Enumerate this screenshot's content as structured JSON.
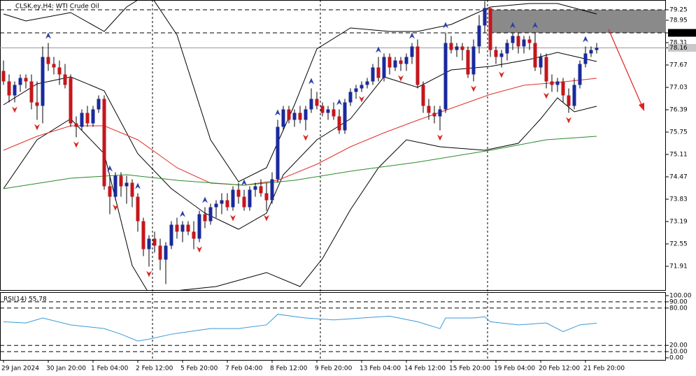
{
  "chart_data": {
    "type": "candlestick",
    "title": "CLSK.ey,H4: WTI Crude Oil",
    "ylim": [
      71.23,
      79.53
    ],
    "yticks": [
      79.25,
      78.95,
      78.59,
      78.31,
      78.16,
      77.67,
      77.03,
      76.39,
      75.75,
      75.11,
      74.47,
      73.83,
      73.19,
      72.55,
      71.91
    ],
    "bid": 78.16,
    "zone": {
      "low": 78.59,
      "high": 79.25,
      "start": 87
    },
    "bull_color": "#1a2a9c",
    "bear_color": "#c4161c",
    "xticks": [
      {
        "value": 0,
        "label": "29 Jan 2024"
      },
      {
        "value": 8,
        "label": "30 Jan 20:00"
      },
      {
        "value": 16,
        "label": "1 Feb 04:00"
      },
      {
        "value": 24,
        "label": "2 Feb 12:00"
      },
      {
        "value": 32,
        "label": "5 Feb 20:00"
      },
      {
        "value": 40,
        "label": "7 Feb 04:00"
      },
      {
        "value": 48,
        "label": "8 Feb 12:00"
      },
      {
        "value": 56,
        "label": "9 Feb 20:00"
      },
      {
        "value": 64,
        "label": "13 Feb 04:00"
      },
      {
        "value": 72,
        "label": "14 Feb 12:00"
      },
      {
        "value": 80,
        "label": "15 Feb 20:00"
      },
      {
        "value": 88,
        "label": "19 Feb 04:00"
      },
      {
        "value": 96,
        "label": "20 Feb 12:00"
      },
      {
        "value": 104,
        "label": "21 Feb 20:00"
      }
    ],
    "candles": [
      [
        77.5,
        77.8,
        77.1,
        77.2
      ],
      [
        77.2,
        77.4,
        76.6,
        76.8
      ],
      [
        76.8,
        77.2,
        76.6,
        77.1
      ],
      [
        77.1,
        77.4,
        76.9,
        77.3
      ],
      [
        77.3,
        77.4,
        77.0,
        77.2
      ],
      [
        77.2,
        77.4,
        76.4,
        76.6
      ],
      [
        76.6,
        77.2,
        76.1,
        76.5
      ],
      [
        76.5,
        78.2,
        76.0,
        77.9
      ],
      [
        77.9,
        78.3,
        77.5,
        77.7
      ],
      [
        77.7,
        77.9,
        77.4,
        77.6
      ],
      [
        77.6,
        77.8,
        77.1,
        77.4
      ],
      [
        77.4,
        77.7,
        77.0,
        77.1
      ],
      [
        77.3,
        77.4,
        75.9,
        76.0
      ],
      [
        76.0,
        76.2,
        75.6,
        75.9
      ],
      [
        75.9,
        76.4,
        75.8,
        76.3
      ],
      [
        76.3,
        76.5,
        75.9,
        76.0
      ],
      [
        76.0,
        76.5,
        75.9,
        76.4
      ],
      [
        76.4,
        76.8,
        76.3,
        76.7
      ],
      [
        76.7,
        76.8,
        74.1,
        74.2
      ],
      [
        74.2,
        74.5,
        73.4,
        73.9
      ],
      [
        73.9,
        74.6,
        73.8,
        74.5
      ],
      [
        74.5,
        74.6,
        73.9,
        74.2
      ],
      [
        74.2,
        74.5,
        73.7,
        74.3
      ],
      [
        74.3,
        74.4,
        73.6,
        73.9
      ],
      [
        73.9,
        74.0,
        72.9,
        73.2
      ],
      [
        73.2,
        73.3,
        72.2,
        72.4
      ],
      [
        72.4,
        72.8,
        71.9,
        72.7
      ],
      [
        72.7,
        72.9,
        72.3,
        72.5
      ],
      [
        72.5,
        72.7,
        71.8,
        72.1
      ],
      [
        72.1,
        72.6,
        71.4,
        72.5
      ],
      [
        72.5,
        73.2,
        72.4,
        73.1
      ],
      [
        73.1,
        73.3,
        72.7,
        72.9
      ],
      [
        72.9,
        73.2,
        72.6,
        73.1
      ],
      [
        73.1,
        73.2,
        72.8,
        72.9
      ],
      [
        72.9,
        73.2,
        72.4,
        72.7
      ],
      [
        72.7,
        73.5,
        72.6,
        73.4
      ],
      [
        73.4,
        73.6,
        73.0,
        73.2
      ],
      [
        73.2,
        73.7,
        73.1,
        73.6
      ],
      [
        73.6,
        73.8,
        73.3,
        73.7
      ],
      [
        73.7,
        74.0,
        73.4,
        73.8
      ],
      [
        73.8,
        74.0,
        73.5,
        73.6
      ],
      [
        73.6,
        74.2,
        73.5,
        74.1
      ],
      [
        74.1,
        74.3,
        73.7,
        73.9
      ],
      [
        73.9,
        74.1,
        73.5,
        73.6
      ],
      [
        73.6,
        74.2,
        73.5,
        74.1
      ],
      [
        74.1,
        74.3,
        73.9,
        74.2
      ],
      [
        74.2,
        74.4,
        73.9,
        74.0
      ],
      [
        74.0,
        74.3,
        73.5,
        73.8
      ],
      [
        73.8,
        74.6,
        73.7,
        74.4
      ],
      [
        74.4,
        76.1,
        74.3,
        75.9
      ],
      [
        75.9,
        76.5,
        75.8,
        76.4
      ],
      [
        76.4,
        76.5,
        76.0,
        76.1
      ],
      [
        76.1,
        76.4,
        75.9,
        76.3
      ],
      [
        76.3,
        76.5,
        76.0,
        76.1
      ],
      [
        76.1,
        76.5,
        75.8,
        76.4
      ],
      [
        76.4,
        77.0,
        76.3,
        76.7
      ],
      [
        76.7,
        76.9,
        76.4,
        76.5
      ],
      [
        76.5,
        76.6,
        76.2,
        76.3
      ],
      [
        76.3,
        76.5,
        76.1,
        76.4
      ],
      [
        76.4,
        76.6,
        76.1,
        76.2
      ],
      [
        76.2,
        76.4,
        75.7,
        75.8
      ],
      [
        75.8,
        76.7,
        75.7,
        76.6
      ],
      [
        76.6,
        77.0,
        76.5,
        76.9
      ],
      [
        76.9,
        77.1,
        76.7,
        77.0
      ],
      [
        77.0,
        77.2,
        76.9,
        77.1
      ],
      [
        77.1,
        77.3,
        77.0,
        77.2
      ],
      [
        77.2,
        77.7,
        77.1,
        77.6
      ],
      [
        77.6,
        77.9,
        77.2,
        77.3
      ],
      [
        77.3,
        78.0,
        77.2,
        77.9
      ],
      [
        77.9,
        78.0,
        77.4,
        77.6
      ],
      [
        77.6,
        77.9,
        77.5,
        77.8
      ],
      [
        77.8,
        77.9,
        77.5,
        77.7
      ],
      [
        77.7,
        78.0,
        77.5,
        77.9
      ],
      [
        77.9,
        78.3,
        77.7,
        78.2
      ],
      [
        78.2,
        78.4,
        77.0,
        77.1
      ],
      [
        77.1,
        77.2,
        76.3,
        76.5
      ],
      [
        76.5,
        76.7,
        76.1,
        76.3
      ],
      [
        76.3,
        76.5,
        76.0,
        76.2
      ],
      [
        76.2,
        76.5,
        75.8,
        76.4
      ],
      [
        76.4,
        78.6,
        76.3,
        78.3
      ],
      [
        78.3,
        78.5,
        78.0,
        78.1
      ],
      [
        78.1,
        78.3,
        77.9,
        78.2
      ],
      [
        78.2,
        78.3,
        77.8,
        78.1
      ],
      [
        78.1,
        78.2,
        77.3,
        77.4
      ],
      [
        77.4,
        78.4,
        77.2,
        78.2
      ],
      [
        78.2,
        79.1,
        78.0,
        78.8
      ],
      [
        78.8,
        79.5,
        78.6,
        79.3
      ],
      [
        79.3,
        79.3,
        77.9,
        78.1
      ],
      [
        78.1,
        78.2,
        77.7,
        77.9
      ],
      [
        77.9,
        78.1,
        77.6,
        78.0
      ],
      [
        78.0,
        78.4,
        77.8,
        78.3
      ],
      [
        78.3,
        78.6,
        78.1,
        78.5
      ],
      [
        78.5,
        78.6,
        78.0,
        78.2
      ],
      [
        78.2,
        78.5,
        78.0,
        78.4
      ],
      [
        78.4,
        78.5,
        78.1,
        78.3
      ],
      [
        78.3,
        78.6,
        77.5,
        77.6
      ],
      [
        77.6,
        78.0,
        77.4,
        77.9
      ],
      [
        77.9,
        78.0,
        77.0,
        77.2
      ],
      [
        77.2,
        77.4,
        76.9,
        77.1
      ],
      [
        77.1,
        77.3,
        76.9,
        77.2
      ],
      [
        77.2,
        77.3,
        76.6,
        76.8
      ],
      [
        76.8,
        77.0,
        76.3,
        76.5
      ],
      [
        76.5,
        77.3,
        76.4,
        77.1
      ],
      [
        77.1,
        77.8,
        77.0,
        77.7
      ],
      [
        77.7,
        78.2,
        77.6,
        78.0
      ],
      [
        78.0,
        78.2,
        77.9,
        78.1
      ],
      [
        78.1,
        78.3,
        78.0,
        78.16
      ]
    ],
    "up_arrows": [
      8,
      19,
      24,
      32,
      36,
      43,
      49,
      55,
      60,
      67,
      73,
      79,
      86,
      91,
      95,
      104
    ],
    "down_arrows": [
      2,
      6,
      13,
      20,
      26,
      35,
      41,
      47,
      54,
      64,
      71,
      78,
      84,
      89,
      97,
      101
    ],
    "lines": [
      {
        "color": "#000000",
        "x": [
          0,
          4,
          12,
          18,
          22,
          26,
          31,
          37,
          42,
          47,
          52,
          56,
          62,
          69,
          74,
          80,
          87,
          94,
          99,
          106
        ],
        "values": [
          79.13,
          78.93,
          79.17,
          78.63,
          79.33,
          79.73,
          78.53,
          75.53,
          74.33,
          74.73,
          76.53,
          78.13,
          78.73,
          78.63,
          78.63,
          78.83,
          79.33,
          79.43,
          79.43,
          79.13
        ]
      },
      {
        "color": "#000000",
        "x": [
          0,
          6,
          12,
          18,
          24,
          30,
          36,
          42,
          47,
          50,
          56,
          62,
          68,
          74,
          80,
          87,
          94,
          99,
          106
        ],
        "values": [
          76.53,
          77.13,
          77.33,
          76.93,
          75.13,
          74.13,
          73.43,
          72.97,
          73.43,
          74.53,
          75.53,
          76.13,
          77.33,
          77.03,
          77.53,
          77.63,
          77.83,
          78.03,
          77.77
        ]
      },
      {
        "color": "#000000",
        "x": [
          0,
          6,
          12,
          18,
          23,
          26,
          38,
          47,
          53,
          57,
          62,
          67,
          72,
          78,
          86,
          92,
          96,
          99,
          102,
          106
        ],
        "values": [
          74.13,
          75.53,
          76.13,
          75.13,
          71.93,
          71.13,
          71.33,
          71.73,
          71.33,
          72.13,
          73.53,
          74.73,
          75.53,
          75.33,
          75.23,
          75.43,
          76.13,
          76.73,
          76.33,
          76.49
        ]
      },
      {
        "color": "#e0302a",
        "x": [
          0,
          6,
          12,
          18,
          24,
          31,
          37,
          43,
          49,
          56,
          62,
          68,
          74,
          80,
          87,
          93,
          99,
          106
        ],
        "values": [
          75.23,
          75.63,
          75.93,
          75.93,
          75.53,
          74.73,
          74.29,
          74.23,
          74.37,
          74.83,
          75.33,
          75.73,
          76.09,
          76.43,
          76.83,
          77.09,
          77.17,
          77.29
        ]
      },
      {
        "color": "#2a8a2a",
        "x": [
          0,
          12,
          22,
          31,
          43,
          52,
          62,
          74,
          87,
          97,
          106
        ],
        "values": [
          74.13,
          74.43,
          74.53,
          74.37,
          74.23,
          74.37,
          74.63,
          74.89,
          75.23,
          75.53,
          75.63
        ]
      }
    ],
    "rsi": {
      "label": "RSI(14) 55.78",
      "color": "#3a9ad9",
      "ylim": [
        0,
        100
      ],
      "yticks": [
        {
          "value": 100,
          "label": "100.00"
        },
        {
          "value": 90,
          "label": "90.00"
        },
        {
          "value": 80,
          "label": "80.00"
        },
        {
          "value": 20,
          "label": "20.00"
        },
        {
          "value": 10,
          "label": "10.00"
        },
        {
          "value": 0,
          "label": "0.00"
        }
      ],
      "x": [
        0,
        4,
        7,
        12,
        18,
        21,
        24,
        26,
        30,
        37,
        42,
        47,
        49,
        54,
        59,
        64,
        69,
        74,
        78,
        79,
        84,
        86,
        87,
        92,
        97,
        100,
        103,
        106
      ],
      "values": [
        58,
        56,
        64,
        53,
        47,
        38,
        27,
        30,
        38,
        47,
        47,
        53,
        70,
        64,
        61,
        64,
        67,
        58,
        47,
        64,
        64,
        66,
        58,
        53,
        56,
        42,
        53,
        55.78
      ]
    }
  }
}
